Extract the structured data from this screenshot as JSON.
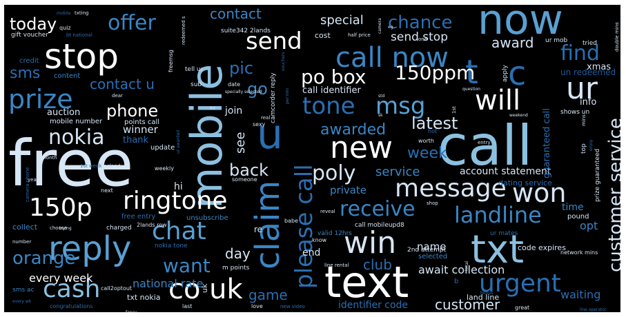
{
  "palette": {
    "c1": "#ffffff",
    "c2": "#d7e6f5",
    "c3": "#b4d3ea",
    "c4": "#8cc0e0",
    "c5": "#5aa0d2",
    "c6": "#3a86c4",
    "c7": "#2a6fb3",
    "c8": "#1f5a9a",
    "c9": "#17457c"
  },
  "words": [
    {
      "text": "free"
    },
    {
      "text": "call"
    },
    {
      "text": "now"
    },
    {
      "text": "text"
    },
    {
      "text": "mobile"
    },
    {
      "text": "txt"
    },
    {
      "text": "stop"
    },
    {
      "text": "call now"
    },
    {
      "text": "reply"
    },
    {
      "text": "u"
    },
    {
      "text": "please call"
    },
    {
      "text": "claim"
    },
    {
      "text": "prize"
    },
    {
      "text": "ringtone"
    },
    {
      "text": "150p"
    },
    {
      "text": "win"
    },
    {
      "text": "message"
    },
    {
      "text": "co uk"
    },
    {
      "text": "urgent"
    },
    {
      "text": "new"
    },
    {
      "text": "send"
    },
    {
      "text": "cash"
    },
    {
      "text": "chat"
    },
    {
      "text": "tone"
    },
    {
      "text": "msg"
    },
    {
      "text": "won"
    },
    {
      "text": "ur"
    },
    {
      "text": "will"
    },
    {
      "text": "t"
    },
    {
      "text": "c"
    },
    {
      "text": "offer"
    },
    {
      "text": "po box"
    },
    {
      "text": "150ppm"
    },
    {
      "text": "receive"
    },
    {
      "text": "landline"
    },
    {
      "text": "poly"
    },
    {
      "text": "nokia"
    },
    {
      "text": "want"
    },
    {
      "text": "orange"
    },
    {
      "text": "customer service"
    },
    {
      "text": "today"
    },
    {
      "text": "chance"
    },
    {
      "text": "find"
    },
    {
      "text": "contact"
    },
    {
      "text": "phone"
    },
    {
      "text": "pic"
    },
    {
      "text": "go"
    },
    {
      "text": "back"
    },
    {
      "text": "sms"
    },
    {
      "text": "awarded"
    },
    {
      "text": "latest"
    },
    {
      "text": "week"
    },
    {
      "text": "award"
    },
    {
      "text": "contact u"
    },
    {
      "text": "club"
    },
    {
      "text": "game"
    },
    {
      "text": "customer"
    },
    {
      "text": "special"
    },
    {
      "text": "send stop"
    },
    {
      "text": "day"
    },
    {
      "text": "service"
    },
    {
      "text": "account statement"
    },
    {
      "text": "await collection"
    },
    {
      "text": "national rate"
    },
    {
      "text": "every week"
    },
    {
      "text": "private"
    },
    {
      "text": "identifier code"
    },
    {
      "text": "name"
    },
    {
      "text": "winner"
    },
    {
      "text": "thank"
    },
    {
      "text": "auction"
    },
    {
      "text": "call identifier"
    },
    {
      "text": "info"
    },
    {
      "text": "see"
    },
    {
      "text": "join"
    },
    {
      "text": "hi"
    },
    {
      "text": "end"
    },
    {
      "text": "time"
    },
    {
      "text": "opt"
    },
    {
      "text": "waiting"
    },
    {
      "text": "guaranteed call"
    },
    {
      "text": "xmas"
    },
    {
      "text": "un redeemed"
    },
    {
      "text": "dating service"
    },
    {
      "text": "code expires"
    },
    {
      "text": "land line"
    },
    {
      "text": "txt nokia"
    },
    {
      "text": "mobile number"
    },
    {
      "text": "points call"
    },
    {
      "text": "update"
    },
    {
      "text": "collect"
    },
    {
      "text": "credit"
    },
    {
      "text": "content"
    },
    {
      "text": "cost"
    },
    {
      "text": "sub"
    },
    {
      "text": "suite342 2lands"
    },
    {
      "text": "gift voucher"
    },
    {
      "text": "unsubscribe"
    },
    {
      "text": "2nd attempt"
    },
    {
      "text": "pound"
    },
    {
      "text": "valid 12hrs"
    },
    {
      "text": "call mobileupd8"
    },
    {
      "text": "free entry"
    },
    {
      "text": "2lands row"
    },
    {
      "text": "charged"
    },
    {
      "text": "nokia tone"
    },
    {
      "text": "m points"
    },
    {
      "text": "re"
    },
    {
      "text": "uk"
    },
    {
      "text": "camcorder reply"
    },
    {
      "text": "ur mates"
    },
    {
      "text": "selected"
    },
    {
      "text": "network mins"
    },
    {
      "text": "call2optout"
    },
    {
      "text": "sms ac"
    },
    {
      "text": "congratulations"
    },
    {
      "text": "last"
    },
    {
      "text": "love"
    },
    {
      "text": "new video"
    },
    {
      "text": "great"
    },
    {
      "text": "ur mob"
    },
    {
      "text": "tried"
    },
    {
      "text": "double mins"
    },
    {
      "text": "shows un"
    },
    {
      "text": "prize guaranteed"
    },
    {
      "text": "top"
    },
    {
      "text": "apply"
    },
    {
      "text": "half price"
    },
    {
      "text": "tell ur"
    },
    {
      "text": "freemsg"
    },
    {
      "text": "redeemed s"
    },
    {
      "text": "bt national"
    },
    {
      "text": "quiz"
    },
    {
      "text": "txting"
    },
    {
      "text": "mobile"
    },
    {
      "text": "year"
    },
    {
      "text": "weekly"
    },
    {
      "text": "someone"
    },
    {
      "text": "next"
    },
    {
      "text": "number"
    },
    {
      "text": "choose"
    },
    {
      "text": "trying"
    },
    {
      "text": "reveal"
    },
    {
      "text": "babe"
    },
    {
      "text": "sexy"
    },
    {
      "text": "real"
    },
    {
      "text": "date"
    },
    {
      "text": "shop"
    },
    {
      "text": "know"
    },
    {
      "text": "line rental"
    },
    {
      "text": "camera phone"
    },
    {
      "text": "1st week"
    },
    {
      "text": "england"
    },
    {
      "text": "month"
    },
    {
      "text": "dear"
    },
    {
      "text": "question"
    },
    {
      "text": "worth"
    },
    {
      "text": "hot"
    },
    {
      "text": "entry"
    },
    {
      "text": "b"
    },
    {
      "text": "weekend"
    },
    {
      "text": "mins"
    },
    {
      "text": "one"
    },
    {
      "text": "camera"
    },
    {
      "text": "eg"
    },
    {
      "text": "std"
    },
    {
      "text": "sk"
    },
    {
      "text": "ltd"
    },
    {
      "text": "fancy"
    },
    {
      "text": "every wk"
    },
    {
      "text": "ur awarded"
    },
    {
      "text": "specially selected"
    },
    {
      "text": "per min"
    },
    {
      "text": "vouchers"
    },
    {
      "text": "1st"
    },
    {
      "text": "bonus"
    },
    {
      "text": "local"
    },
    {
      "text": "line operator"
    },
    {
      "text": "enjoy"
    }
  ]
}
